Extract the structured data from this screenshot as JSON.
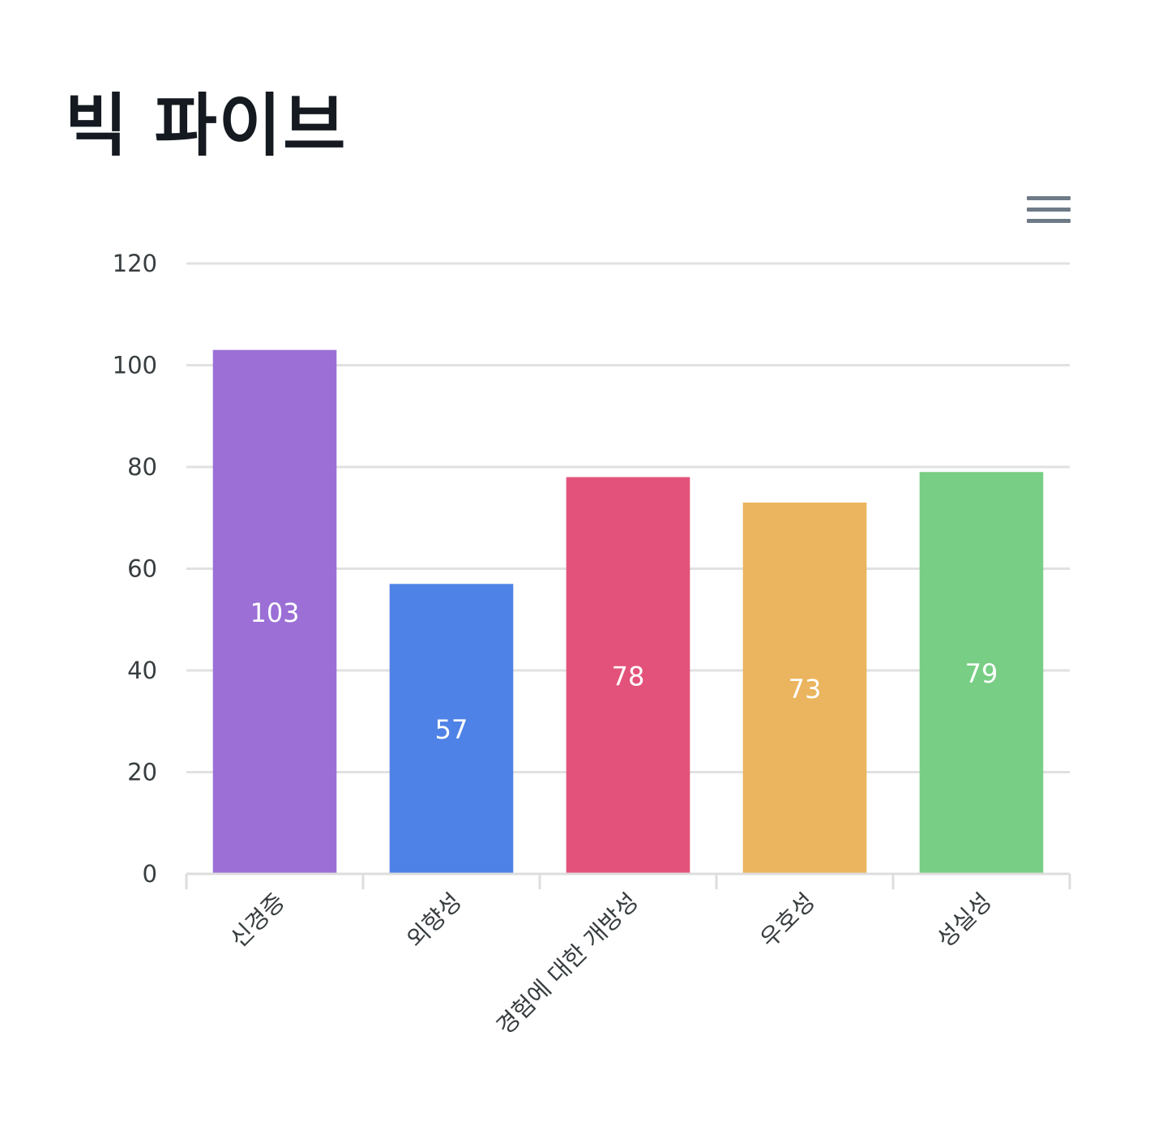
{
  "title": "빅 파이브",
  "toolbar": {
    "menu_icon": "hamburger-menu-icon"
  },
  "chart_data": {
    "type": "bar",
    "title": "빅 파이브",
    "categories": [
      "신경증",
      "외향성",
      "경험에 대한 개방성",
      "우호성",
      "성실성"
    ],
    "values": [
      103,
      57,
      78,
      73,
      79
    ],
    "colors": [
      "#9b6fd6",
      "#4f82e6",
      "#e3527a",
      "#ebb45f",
      "#78ce84"
    ],
    "ylim": [
      0,
      120
    ],
    "yticks": [
      0,
      20,
      40,
      60,
      80,
      100,
      120
    ],
    "grid": true,
    "data_labels": true,
    "xlabel": "",
    "ylabel": ""
  }
}
